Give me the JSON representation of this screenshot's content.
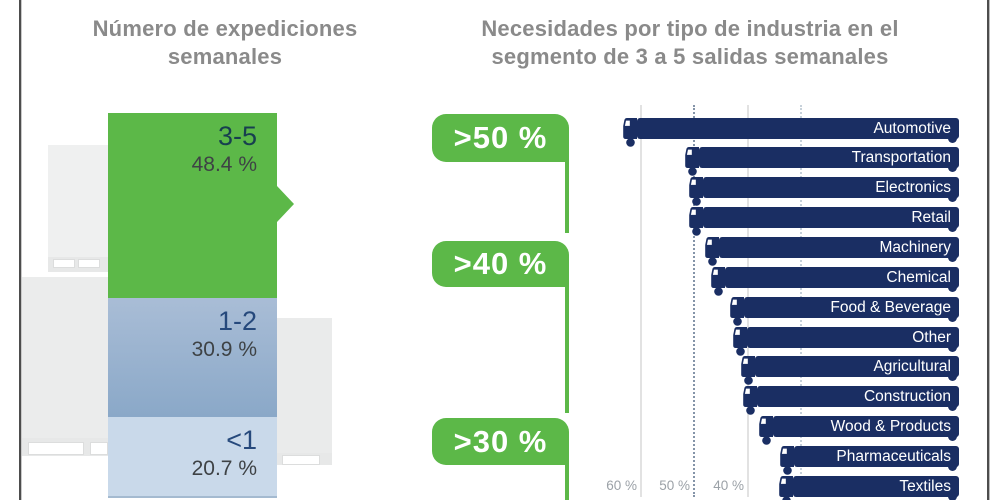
{
  "colors": {
    "green": "#5cb848",
    "navy": "#1a2e63",
    "mid_blue": "#9ab4d2",
    "light_blue": "#c9d9ea",
    "title_gray": "#8a8a8a"
  },
  "left_panel": {
    "title_line1": "Número de expediciones",
    "title_line2": "semanales"
  },
  "right_panel": {
    "title_line1": "Necesidades por tipo de industria en el",
    "title_line2": "segmento de 3 a 5 salidas semanales"
  },
  "chart_data": [
    {
      "type": "bar",
      "orientation": "vertical-stacked",
      "title": "Número de expediciones semanales",
      "categories": [
        "3-5",
        "1-2",
        "<1"
      ],
      "values": [
        48.4,
        30.9,
        20.7
      ],
      "value_labels": [
        "48.4 %",
        "30.9 %",
        "20.7 %"
      ],
      "colors": [
        "#5cb848",
        "#9ab4d2",
        "#c9d9ea"
      ],
      "unit": "%"
    },
    {
      "type": "bar",
      "orientation": "horizontal-right-anchored",
      "title": "Necesidades por tipo de industria en el segmento de 3 a 5 salidas semanales",
      "categories": [
        "Automotive",
        "Transportation",
        "Electronics",
        "Retail",
        "Machinery",
        "Chemical",
        "Food & Beverage",
        "Other",
        "Agricultural",
        "Construction",
        "Wood & Products",
        "Pharmaceuticals",
        "Textiles"
      ],
      "values": [
        63.5,
        52.0,
        51.2,
        51.2,
        48.2,
        47.0,
        43.5,
        42.9,
        41.5,
        41.0,
        38.0,
        34.2,
        34.4
      ],
      "unit": "%",
      "axis": {
        "direction": "values-increase-leftward",
        "ticks": [
          {
            "value": 60,
            "label": "60 %",
            "style": "solid"
          },
          {
            "value": 50,
            "label": "50 %",
            "style": "dot-dark"
          },
          {
            "value": 40,
            "label": "40 %",
            "style": "solid"
          },
          {
            "value": 30,
            "label": "",
            "style": "dot-light"
          }
        ]
      },
      "groups": [
        {
          "label": ">50 %",
          "categories": [
            "Automotive",
            "Transportation",
            "Electronics",
            "Retail"
          ]
        },
        {
          "label": ">40 %",
          "categories": [
            "Machinery",
            "Chemical",
            "Food & Beverage",
            "Other",
            "Agricultural",
            "Construction"
          ]
        },
        {
          "label": ">30 %",
          "categories": [
            "Wood & Products",
            "Pharmaceuticals",
            "Textiles"
          ]
        }
      ]
    }
  ]
}
